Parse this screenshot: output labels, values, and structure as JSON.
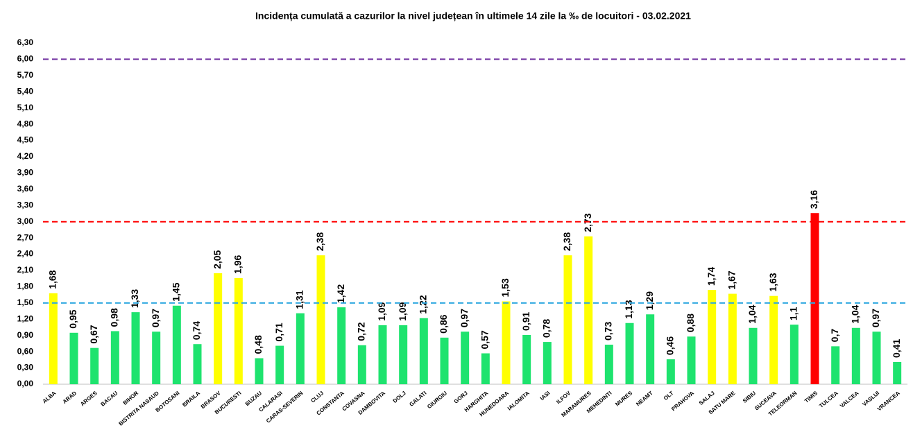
{
  "chart_data": {
    "type": "bar",
    "title": "Incidența cumulată a cazurilor la nivel județean în ultimele 14 zile la ‰ de locuitori - 03.02.2021",
    "categories": [
      "ALBA",
      "ARAD",
      "ARGES",
      "BACAU",
      "BIHOR",
      "BISTRITA NASAUD",
      "BOTOSANI",
      "BRAILA",
      "BRASOV",
      "BUCURESTI",
      "BUZAU",
      "CALARASI",
      "CARAS-SEVERIN",
      "CLUJ",
      "CONSTANTA",
      "COVASNA",
      "DAMBOVITA",
      "DOLJ",
      "GALATI",
      "GIURGIU",
      "GORJ",
      "HARGHITA",
      "HUNEDOARA",
      "IALOMITA",
      "IASI",
      "ILFOV",
      "MARAMURES",
      "MEHEDINTI",
      "MURES",
      "NEAMT",
      "OLT",
      "PRAHOVA",
      "SALAJ",
      "SATU MARE",
      "SIBIU",
      "SUCEAVA",
      "TELEORMAN",
      "TIMIS",
      "TULCEA",
      "VALCEA",
      "VASLUI",
      "VRANCEA"
    ],
    "values": [
      1.68,
      0.95,
      0.67,
      0.98,
      1.33,
      0.97,
      1.45,
      0.74,
      2.05,
      1.96,
      0.48,
      0.71,
      1.31,
      2.38,
      1.42,
      0.72,
      1.09,
      1.09,
      1.22,
      0.86,
      0.97,
      0.57,
      1.53,
      0.91,
      0.78,
      2.38,
      2.73,
      0.73,
      1.13,
      1.29,
      0.46,
      0.88,
      1.74,
      1.67,
      1.04,
      1.63,
      1.1,
      3.16,
      0.7,
      1.04,
      0.97,
      0.41
    ],
    "value_labels": [
      "1,68",
      "0,95",
      "0,67",
      "0,98",
      "1,33",
      "0,97",
      "1,45",
      "0,74",
      "2,05",
      "1,96",
      "0,48",
      "0,71",
      "1,31",
      "2,38",
      "1,42",
      "0,72",
      "1,09",
      "1,09",
      "1,22",
      "0,86",
      "0,97",
      "0,57",
      "1,53",
      "0,91",
      "0,78",
      "2,38",
      "2,73",
      "0,73",
      "1,13",
      "1,29",
      "0,46",
      "0,88",
      "1,74",
      "1,67",
      "1,04",
      "1,63",
      "1,1",
      "3,16",
      "0,7",
      "1,04",
      "0,97",
      "0,41"
    ],
    "colors": [
      "#ffff00",
      "#1ee36e",
      "#1ee36e",
      "#1ee36e",
      "#1ee36e",
      "#1ee36e",
      "#1ee36e",
      "#1ee36e",
      "#ffff00",
      "#ffff00",
      "#1ee36e",
      "#1ee36e",
      "#1ee36e",
      "#ffff00",
      "#1ee36e",
      "#1ee36e",
      "#1ee36e",
      "#1ee36e",
      "#1ee36e",
      "#1ee36e",
      "#1ee36e",
      "#1ee36e",
      "#ffff00",
      "#1ee36e",
      "#1ee36e",
      "#ffff00",
      "#ffff00",
      "#1ee36e",
      "#1ee36e",
      "#1ee36e",
      "#1ee36e",
      "#1ee36e",
      "#ffff00",
      "#ffff00",
      "#1ee36e",
      "#ffff00",
      "#1ee36e",
      "#ff0000",
      "#1ee36e",
      "#1ee36e",
      "#1ee36e",
      "#1ee36e"
    ],
    "ylim": [
      0,
      6.3
    ],
    "yticks": [
      {
        "value": 0,
        "label": "0,00"
      },
      {
        "value": 0.3,
        "label": "0,30"
      },
      {
        "value": 0.6,
        "label": "0,60"
      },
      {
        "value": 0.9,
        "label": "0,90"
      },
      {
        "value": 1.2,
        "label": "1,20"
      },
      {
        "value": 1.5,
        "label": "1,50"
      },
      {
        "value": 1.8,
        "label": "1,80"
      },
      {
        "value": 2.1,
        "label": "2,10"
      },
      {
        "value": 2.4,
        "label": "2,40"
      },
      {
        "value": 2.7,
        "label": "2,70"
      },
      {
        "value": 3.0,
        "label": "3,00"
      },
      {
        "value": 3.3,
        "label": "3,30"
      },
      {
        "value": 3.6,
        "label": "3,60"
      },
      {
        "value": 3.9,
        "label": "3,90"
      },
      {
        "value": 4.2,
        "label": "4,20"
      },
      {
        "value": 4.5,
        "label": "4,50"
      },
      {
        "value": 4.8,
        "label": "4,80"
      },
      {
        "value": 5.1,
        "label": "5,10"
      },
      {
        "value": 5.4,
        "label": "5,40"
      },
      {
        "value": 5.7,
        "label": "5,70"
      },
      {
        "value": 6.0,
        "label": "6,00"
      },
      {
        "value": 6.3,
        "label": "6,30"
      }
    ],
    "reference_lines": [
      {
        "value": 1.5,
        "color": "#2ea8e0"
      },
      {
        "value": 3.0,
        "color": "#ff0000"
      },
      {
        "value": 6.0,
        "color": "#7030a0"
      }
    ]
  }
}
